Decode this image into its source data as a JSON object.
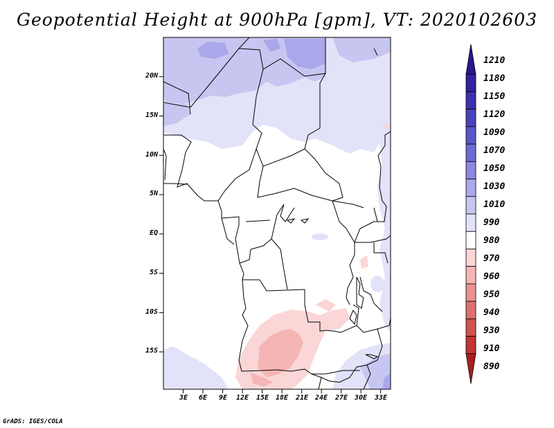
{
  "title": "Geopotential Height at 900hPa [gpm], VT: 2020102603",
  "credit": "GrADS: IGES/COLA",
  "map": {
    "variable": "Geopotential Height",
    "level": "900hPa",
    "units": "gpm",
    "valid_time": "2020102603",
    "lat_range": [
      -20,
      24
    ],
    "lon_range": [
      1,
      35.5
    ]
  },
  "axes": {
    "lat_ticks": [
      {
        "label": "20N",
        "lat": 20
      },
      {
        "label": "15N",
        "lat": 15
      },
      {
        "label": "10N",
        "lat": 10
      },
      {
        "label": "5N",
        "lat": 5
      },
      {
        "label": "EQ",
        "lat": 0
      },
      {
        "label": "5S",
        "lat": -5
      },
      {
        "label": "10S",
        "lat": -10
      },
      {
        "label": "15S",
        "lat": -15
      }
    ],
    "lon_ticks": [
      {
        "label": "3E",
        "lon": 3
      },
      {
        "label": "6E",
        "lon": 6
      },
      {
        "label": "9E",
        "lon": 9
      },
      {
        "label": "12E",
        "lon": 12
      },
      {
        "label": "15E",
        "lon": 15
      },
      {
        "label": "18E",
        "lon": 18
      },
      {
        "label": "21E",
        "lon": 21
      },
      {
        "label": "24E",
        "lon": 24
      },
      {
        "label": "27E",
        "lon": 27
      },
      {
        "label": "30E",
        "lon": 30
      },
      {
        "label": "33E",
        "lon": 33
      }
    ]
  },
  "colorbar": {
    "labels": [
      "1210",
      "1180",
      "1150",
      "1120",
      "1090",
      "1070",
      "1050",
      "1030",
      "1010",
      "990",
      "980",
      "970",
      "960",
      "950",
      "940",
      "930",
      "910",
      "890"
    ],
    "colors": [
      "#2a178a",
      "#32239f",
      "#3b30ad",
      "#4a42bb",
      "#5b55c8",
      "#6f6bd3",
      "#8c88df",
      "#aaa7ea",
      "#c7c6f1",
      "#e2e2f9",
      "#ffffff",
      "#fbd6d6",
      "#f4b5b4",
      "#ea9291",
      "#de716f",
      "#d05251",
      "#c13534",
      "#a81f1e"
    ]
  }
}
